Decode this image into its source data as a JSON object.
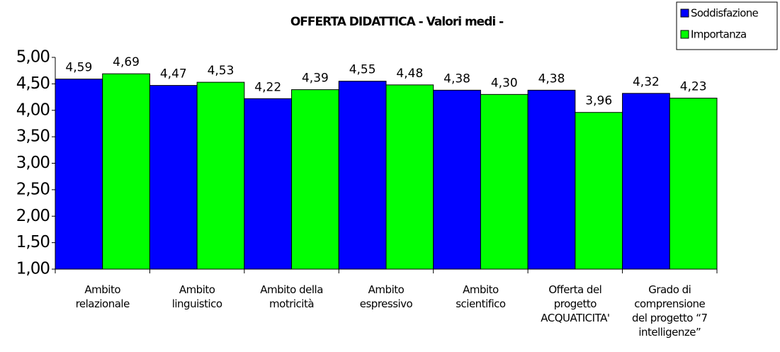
{
  "chart_data": {
    "type": "bar",
    "title": "OFFERTA DIDATTICA - Valori medi -",
    "categories": [
      "Ambito relazionale",
      "Ambito linguistico",
      "Ambito della motricità",
      "Ambito espressivo",
      "Ambito scientifico",
      "Offerta del progetto ACQUATICITA'",
      "Grado di comprensione del progetto “7 intelligenze”"
    ],
    "series": [
      {
        "name": "Soddisfazione",
        "color": "#0000ff",
        "values": [
          4.59,
          4.47,
          4.22,
          4.55,
          4.38,
          4.38,
          4.32
        ],
        "value_labels": [
          "4,59",
          "4,47",
          "4,22",
          "4,55",
          "4,38",
          "4,38",
          "4,32"
        ]
      },
      {
        "name": "Importanza",
        "color": "#00ff00",
        "values": [
          4.69,
          4.53,
          4.39,
          4.48,
          4.3,
          3.96,
          4.23
        ],
        "value_labels": [
          "4,69",
          "4,53",
          "4,39",
          "4,48",
          "4,30",
          "3,96",
          "4,23"
        ]
      }
    ],
    "ylim": [
      1,
      5
    ],
    "yticks": [
      {
        "value": 1,
        "label": "1,00"
      },
      {
        "value": 1.5,
        "label": "1,50"
      },
      {
        "value": 2,
        "label": "2,00"
      },
      {
        "value": 2.5,
        "label": "2,50"
      },
      {
        "value": 3,
        "label": "3,00"
      },
      {
        "value": 3.5,
        "label": "3,50"
      },
      {
        "value": 4,
        "label": "4,00"
      },
      {
        "value": 4.5,
        "label": "4,50"
      },
      {
        "value": 5,
        "label": "5,00"
      }
    ],
    "legend": "top-right",
    "grid": false
  }
}
